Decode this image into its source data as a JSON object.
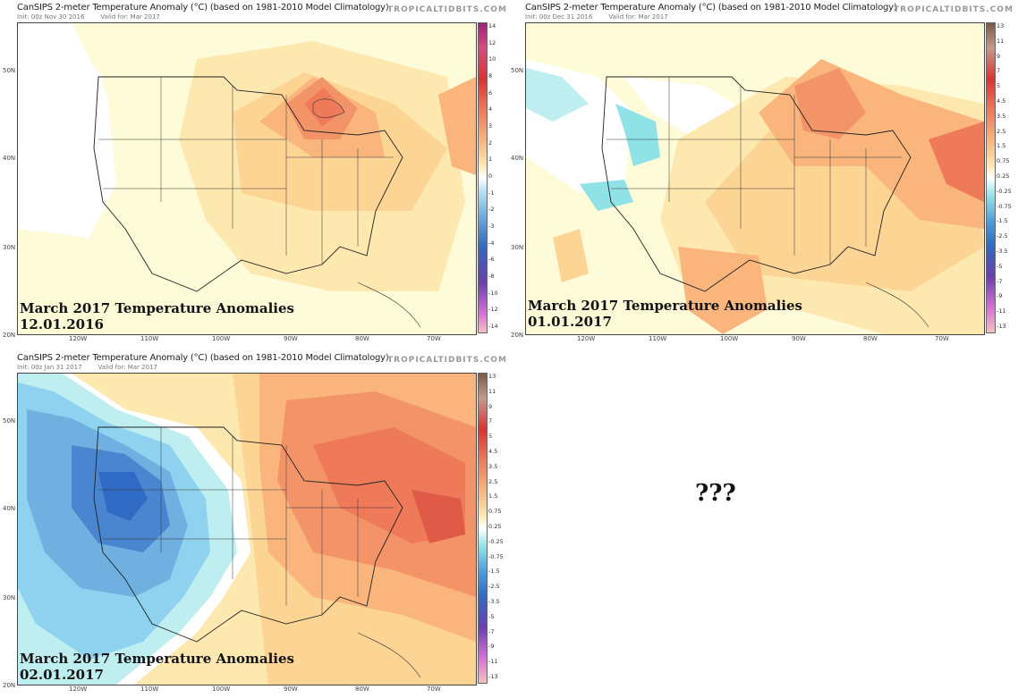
{
  "panels": [
    {
      "title": "CanSIPS 2-meter Temperature Anomaly (°C) (based on 1981-2010 Model Climatology)",
      "init": "Init: 00z Nov 30 2016",
      "valid": "Valid for: Mar 2017",
      "brand": "TROPICALTIDBITS.COM",
      "overlay_line1": "March 2017 Temperature Anomalies",
      "overlay_line2": "12.01.2016",
      "colorbar_ticks": [
        "14",
        "12",
        "10",
        "8",
        "6",
        "4",
        "3",
        "2",
        "1",
        "0",
        "-1",
        "-2",
        "-3",
        "-4",
        "-6",
        "-8",
        "-10",
        "-12",
        "-14"
      ],
      "lat_labels": [
        "50N",
        "40N",
        "30N",
        "20N"
      ],
      "lon_labels": [
        "120W",
        "110W",
        "100W",
        "90W",
        "80W",
        "70W"
      ]
    },
    {
      "title": "CanSIPS 2-meter Temperature Anomaly (°C) (based on 1981-2010 Model Climatology)",
      "init": "Init: 00z Dec 31 2016",
      "valid": "Valid for: Mar 2017",
      "brand": "TROPICALTIDBITS.COM",
      "overlay_line1": "March 2017 Temperature Anomalies",
      "overlay_line2": "01.01.2017",
      "colorbar_ticks": [
        "13",
        "11",
        "9",
        "7",
        "5",
        "4.5",
        "3.5",
        "2.5",
        "1.5",
        "0.75",
        "0.25",
        "-0.25",
        "-0.75",
        "-1.5",
        "-2.5",
        "-3.5",
        "-5",
        "-7",
        "-9",
        "-11",
        "-13"
      ],
      "lat_labels": [
        "50N",
        "40N",
        "30N",
        "20N"
      ],
      "lon_labels": [
        "120W",
        "110W",
        "100W",
        "90W",
        "80W",
        "70W"
      ]
    },
    {
      "title": "CanSIPS 2-meter Temperature Anomaly (°C) (based on 1981-2010 Model Climatology)",
      "init": "Init: 00z Jan 31 2017",
      "valid": "Valid for: Mar 2017",
      "brand": "TROPICALTIDBITS.COM",
      "overlay_line1": "March 2017 Temperature Anomalies",
      "overlay_line2": "02.01.2017",
      "colorbar_ticks": [
        "13",
        "11",
        "9",
        "7",
        "5",
        "4.5",
        "3.5",
        "2.5",
        "1.5",
        "0.75",
        "0.25",
        "-0.25",
        "-0.75",
        "-1.5",
        "-2.5",
        "-3.5",
        "-5",
        "-7",
        "-9",
        "-11",
        "-13"
      ],
      "lat_labels": [
        "50N",
        "40N",
        "30N",
        "20N"
      ],
      "lon_labels": [
        "120W",
        "110W",
        "100W",
        "90W",
        "80W",
        "70W"
      ]
    }
  ],
  "placeholder_text": "???"
}
